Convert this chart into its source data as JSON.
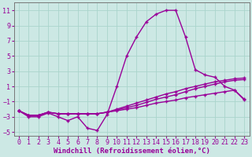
{
  "xlabel": "Windchill (Refroidissement éolien,°C)",
  "background_color": "#cce8e4",
  "grid_color": "#aad4cc",
  "line_color": "#990099",
  "x_values": [
    0,
    1,
    2,
    3,
    4,
    5,
    6,
    7,
    8,
    9,
    10,
    11,
    12,
    13,
    14,
    15,
    16,
    17,
    18,
    19,
    20,
    21,
    22,
    23
  ],
  "series1": [
    -2.2,
    -3.0,
    -3.0,
    -2.5,
    -3.0,
    -3.5,
    -3.0,
    -4.5,
    -4.8,
    -2.7,
    1.0,
    5.0,
    7.5,
    9.5,
    10.5,
    11.0,
    11.0,
    7.5,
    3.2,
    2.5,
    2.2,
    1.0,
    0.5,
    -0.8
  ],
  "series2": [
    -2.2,
    -2.8,
    -2.8,
    -2.4,
    -2.6,
    -2.6,
    -2.6,
    -2.6,
    -2.6,
    -2.4,
    -2.0,
    -1.6,
    -1.2,
    -0.8,
    -0.4,
    0.0,
    0.3,
    0.7,
    1.0,
    1.3,
    1.6,
    1.8,
    2.0,
    2.1
  ],
  "series3": [
    -2.2,
    -2.8,
    -2.8,
    -2.4,
    -2.6,
    -2.6,
    -2.6,
    -2.6,
    -2.6,
    -2.4,
    -2.1,
    -1.8,
    -1.5,
    -1.1,
    -0.7,
    -0.4,
    -0.1,
    0.3,
    0.7,
    1.0,
    1.3,
    1.6,
    1.8,
    1.9
  ],
  "series4": [
    -2.2,
    -2.8,
    -2.8,
    -2.4,
    -2.6,
    -2.6,
    -2.6,
    -2.6,
    -2.6,
    -2.4,
    -2.2,
    -2.0,
    -1.8,
    -1.5,
    -1.2,
    -1.0,
    -0.8,
    -0.5,
    -0.3,
    -0.1,
    0.1,
    0.3,
    0.5,
    -0.7
  ],
  "ylim": [
    -5.5,
    12.0
  ],
  "xlim": [
    -0.5,
    23.5
  ],
  "yticks": [
    -5,
    -3,
    -1,
    1,
    3,
    5,
    7,
    9,
    11
  ],
  "xticks": [
    0,
    1,
    2,
    3,
    4,
    5,
    6,
    7,
    8,
    9,
    10,
    11,
    12,
    13,
    14,
    15,
    16,
    17,
    18,
    19,
    20,
    21,
    22,
    23
  ],
  "xlabel_fontsize": 6.5,
  "tick_fontsize": 6.0
}
